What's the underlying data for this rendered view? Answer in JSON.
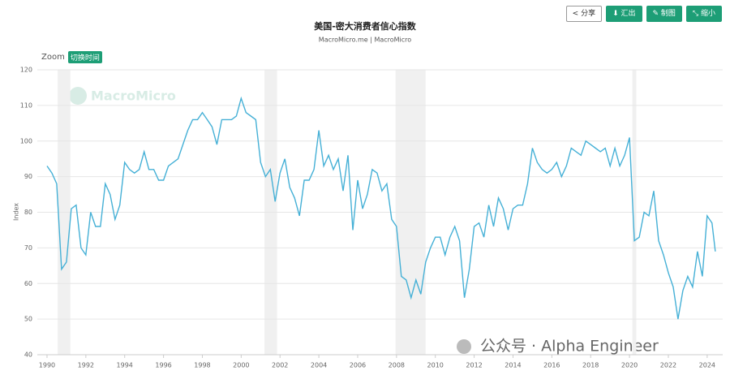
{
  "toolbar": {
    "buttons": [
      "分享",
      "汇出",
      "制图",
      "缩小"
    ]
  },
  "zoom": {
    "label": "Zoom",
    "button": "切换时间"
  },
  "watermark": "MacroMicro",
  "footer": "公众号 · Alpha Engineer",
  "chart_data": {
    "type": "line",
    "title": "美国-密大消费者信心指数",
    "subtitle": "MacroMicro.me | MacroMicro",
    "y_label": "Index",
    "color": "#45b0d6",
    "recessions": [
      [
        1990.55,
        1991.2
      ],
      [
        2001.2,
        2001.85
      ],
      [
        2007.95,
        2009.5
      ],
      [
        2020.15,
        2020.35
      ]
    ],
    "xlim": [
      1989.5,
      2024.8
    ],
    "xticks": [
      1990,
      1992,
      1994,
      1996,
      1998,
      2000,
      2002,
      2004,
      2006,
      2008,
      2010,
      2012,
      2014,
      2016,
      2018,
      2020,
      2022,
      2024
    ],
    "ylim": [
      40,
      120
    ],
    "yticks": [
      40,
      50,
      60,
      70,
      80,
      90,
      100,
      110,
      120
    ],
    "grid": true,
    "x": [
      1990,
      1990.25,
      1990.5,
      1990.75,
      1991,
      1991.25,
      1991.5,
      1991.75,
      1992,
      1992.25,
      1992.5,
      1992.75,
      1993,
      1993.25,
      1993.5,
      1993.75,
      1994,
      1994.25,
      1994.5,
      1994.75,
      1995,
      1995.25,
      1995.5,
      1995.75,
      1996,
      1996.25,
      1996.5,
      1996.75,
      1997,
      1997.25,
      1997.5,
      1997.75,
      1998,
      1998.25,
      1998.5,
      1998.75,
      1999,
      1999.25,
      1999.5,
      1999.75,
      2000,
      2000.25,
      2000.5,
      2000.75,
      2001,
      2001.25,
      2001.5,
      2001.75,
      2002,
      2002.25,
      2002.5,
      2002.75,
      2003,
      2003.25,
      2003.5,
      2003.75,
      2004,
      2004.25,
      2004.5,
      2004.75,
      2005,
      2005.25,
      2005.5,
      2005.75,
      2006,
      2006.25,
      2006.5,
      2006.75,
      2007,
      2007.25,
      2007.5,
      2007.75,
      2008,
      2008.25,
      2008.5,
      2008.75,
      2009,
      2009.25,
      2009.5,
      2009.75,
      2010,
      2010.25,
      2010.5,
      2010.75,
      2011,
      2011.25,
      2011.5,
      2011.75,
      2012,
      2012.25,
      2012.5,
      2012.75,
      2013,
      2013.25,
      2013.5,
      2013.75,
      2014,
      2014.25,
      2014.5,
      2014.75,
      2015,
      2015.25,
      2015.5,
      2015.75,
      2016,
      2016.25,
      2016.5,
      2016.75,
      2017,
      2017.25,
      2017.5,
      2017.75,
      2018,
      2018.25,
      2018.5,
      2018.75,
      2019,
      2019.25,
      2019.5,
      2019.75,
      2020,
      2020.25,
      2020.5,
      2020.75,
      2021,
      2021.25,
      2021.5,
      2021.75,
      2022,
      2022.25,
      2022.5,
      2022.75,
      2023,
      2023.25,
      2023.5,
      2023.75,
      2024,
      2024.25,
      2024.42
    ],
    "values": [
      93,
      91,
      88,
      64,
      66,
      81,
      82,
      70,
      68,
      80,
      76,
      76,
      88,
      85,
      78,
      82,
      94,
      92,
      91,
      92,
      97,
      92,
      92,
      89,
      89,
      93,
      94,
      95,
      99,
      103,
      106,
      106,
      108,
      106,
      104,
      99,
      106,
      106,
      106,
      107,
      112,
      108,
      107,
      106,
      94,
      90,
      92,
      83,
      91,
      95,
      87,
      84,
      79,
      89,
      89,
      92,
      103,
      93,
      96,
      92,
      95,
      86,
      96,
      75,
      89,
      81,
      85,
      92,
      91,
      86,
      88,
      78,
      76,
      62,
      61,
      56,
      61,
      57,
      66,
      70,
      73,
      73,
      68,
      73,
      76,
      72,
      56,
      64,
      76,
      77,
      73,
      82,
      76,
      84,
      81,
      75,
      81,
      82,
      82,
      88,
      98,
      94,
      92,
      91,
      92,
      94,
      90,
      93,
      98,
      97,
      96,
      100,
      99,
      98,
      97,
      98,
      93,
      98,
      93,
      96,
      101,
      72,
      73,
      80,
      79,
      86,
      72,
      68,
      63,
      59,
      50,
      58,
      62,
      59,
      69,
      62,
      79,
      77,
      69
    ]
  }
}
